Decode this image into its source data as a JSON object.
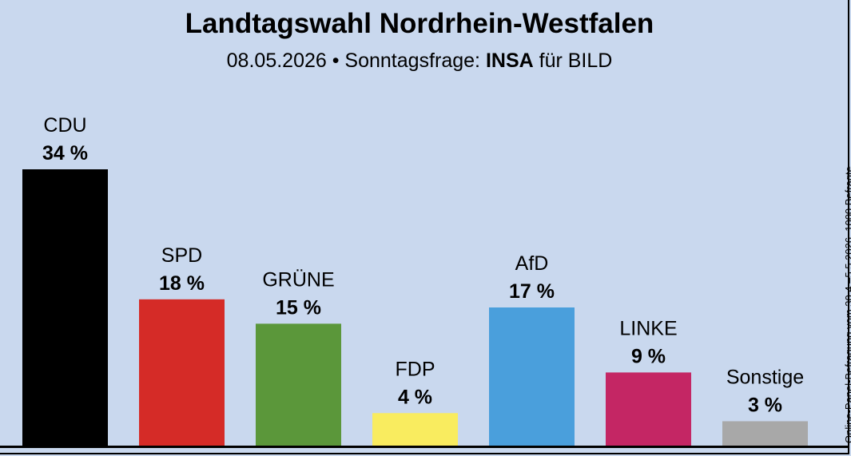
{
  "header": {
    "title": "Landtagswahl Nordrhein-Westfalen",
    "subtitle_date": "08.05.2026 • Sonntagsfrage: ",
    "subtitle_institute": "INSA",
    "subtitle_client": " für BILD"
  },
  "side_note": "Online-Panel-Befragung vom 30.4.–5.5.2026, 1000 Befragte",
  "chart_data": {
    "type": "bar",
    "categories": [
      "CDU",
      "SPD",
      "GRÜNE",
      "FDP",
      "AfD",
      "LINKE",
      "Sonstige"
    ],
    "values": [
      34,
      18,
      15,
      4,
      17,
      9,
      3
    ],
    "value_labels": [
      "34 %",
      "18 %",
      "15 %",
      "4 %",
      "17 %",
      "9 %",
      "3 %"
    ],
    "colors": [
      "#000000",
      "#d52b27",
      "#5b973a",
      "#f9ec5f",
      "#4a9fdc",
      "#c42664",
      "#a8a8a8"
    ],
    "ylim": [
      0,
      34
    ],
    "grid": false,
    "legend": "none"
  }
}
